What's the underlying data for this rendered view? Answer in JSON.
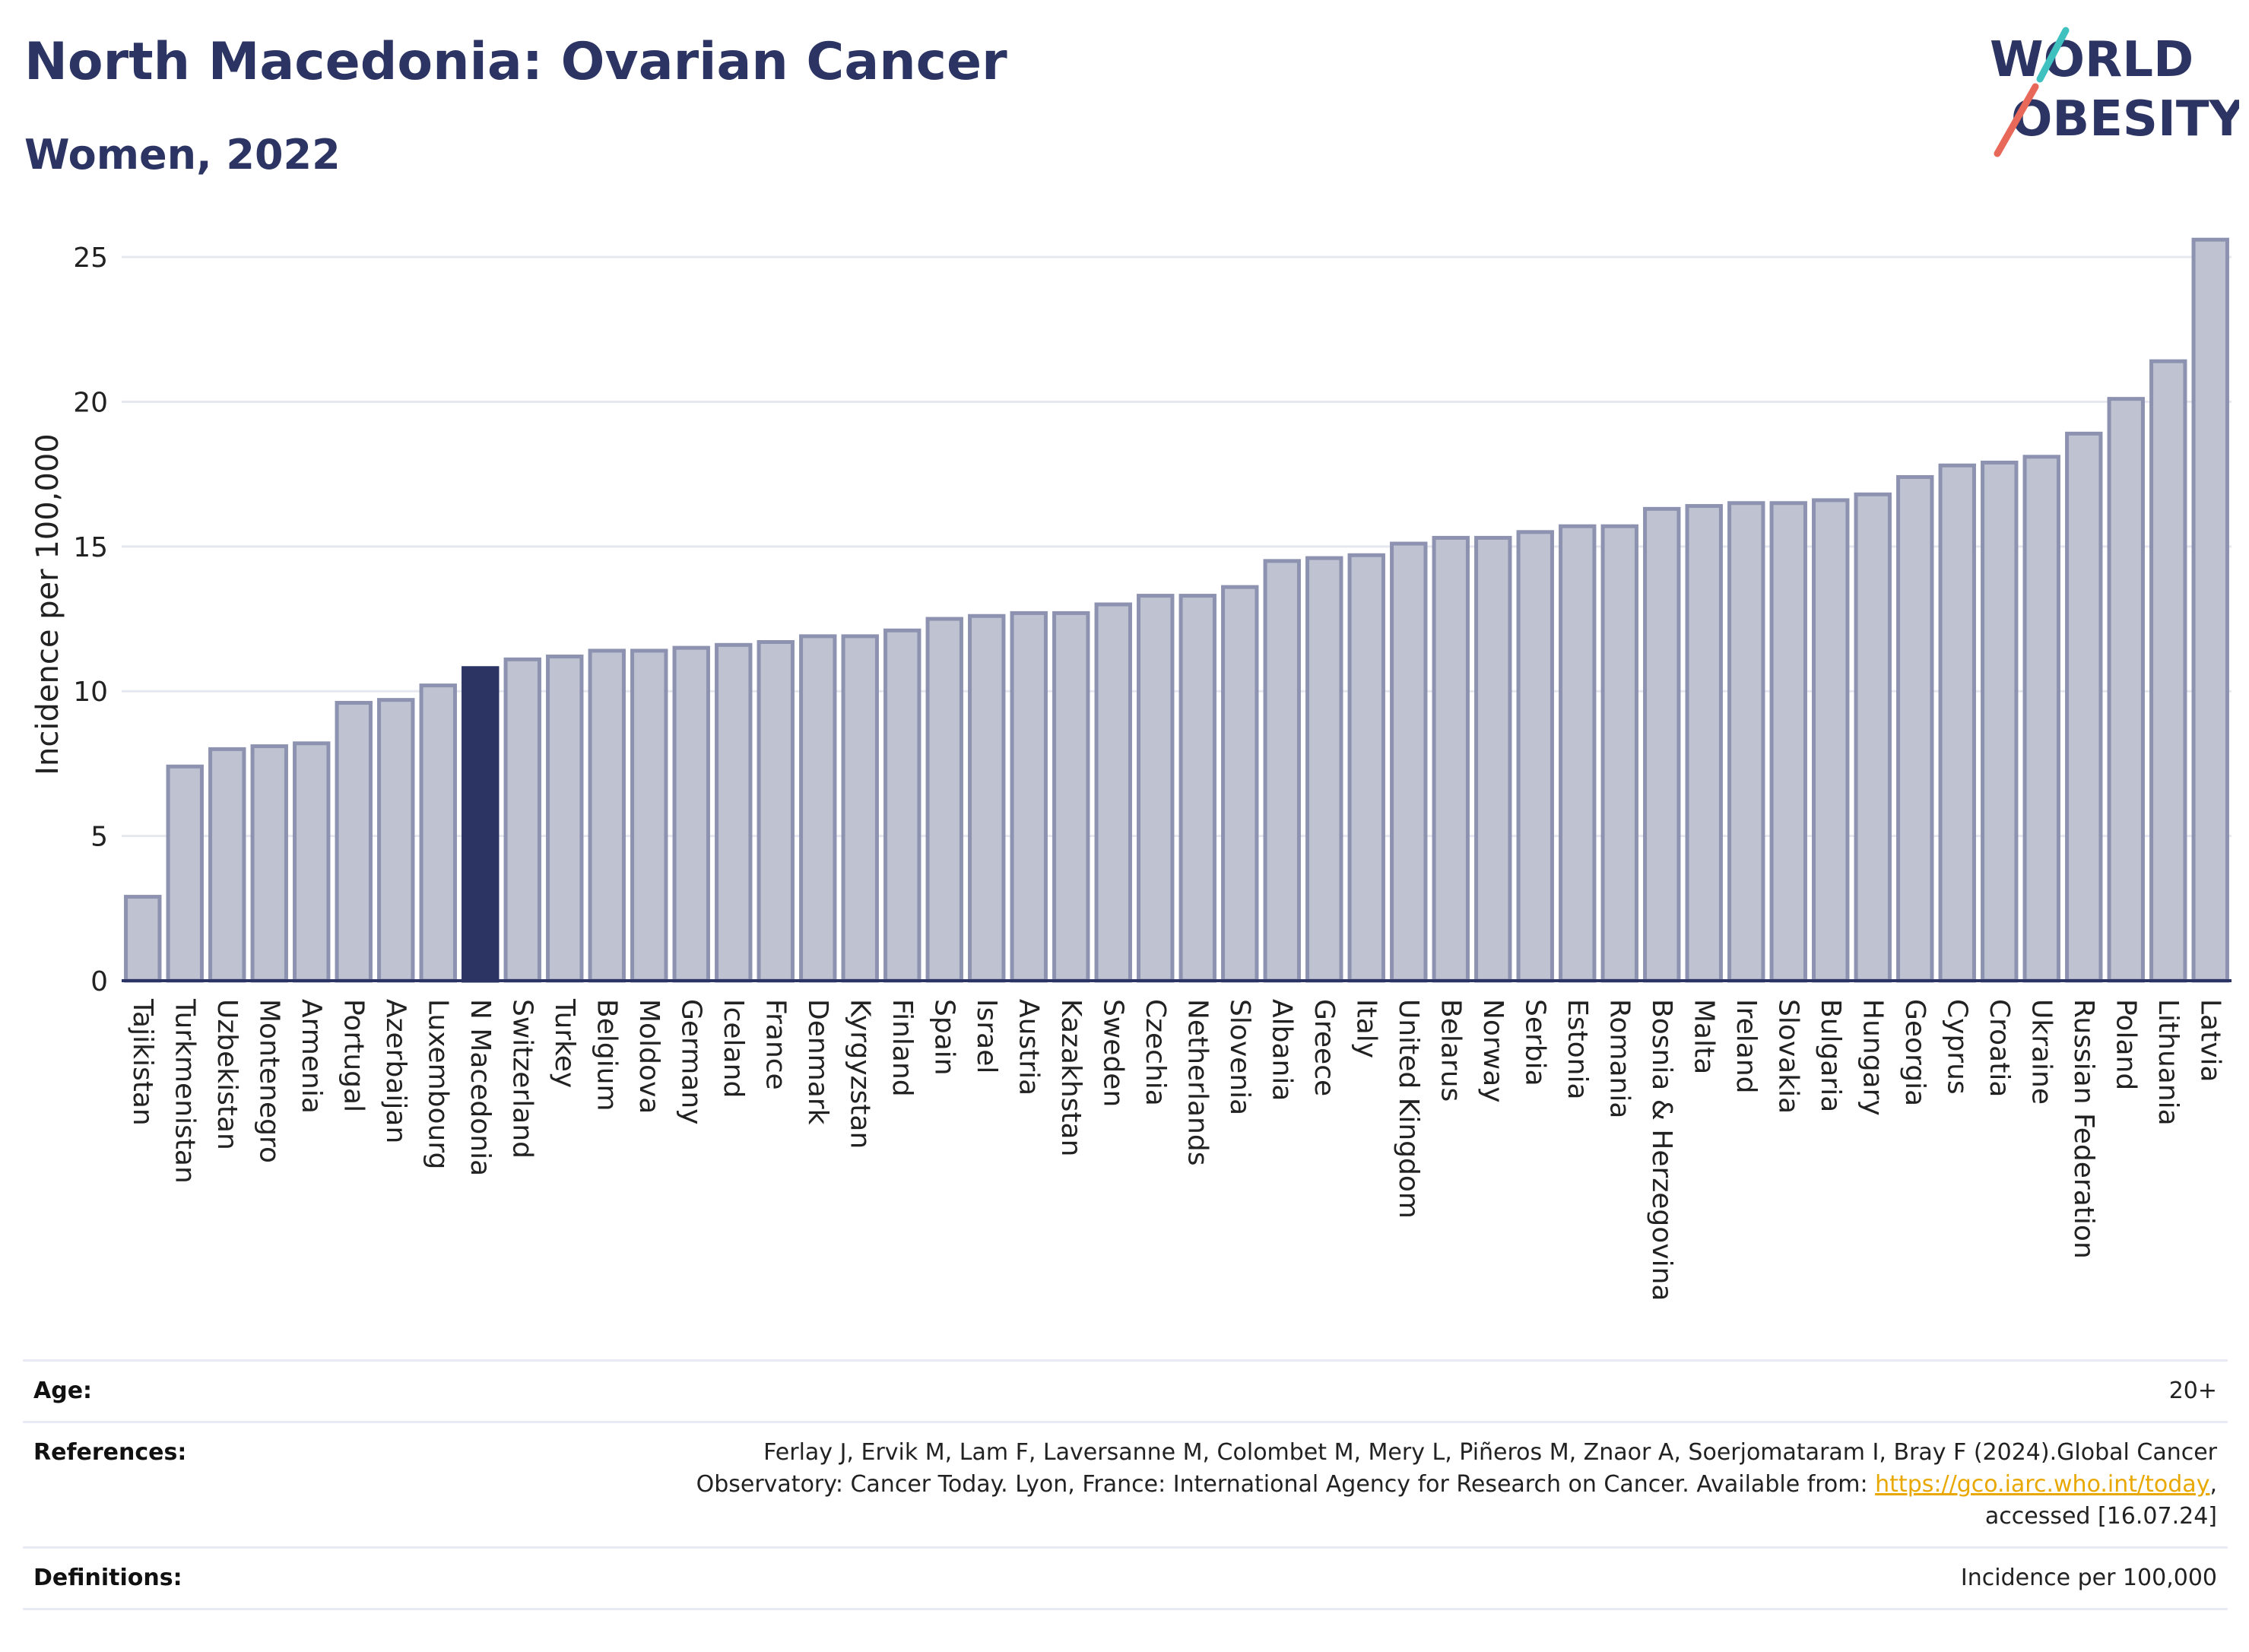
{
  "header": {
    "title": "North Macedonia: Ovarian Cancer",
    "subtitle": "Women, 2022"
  },
  "logo": {
    "line1": "WORLD",
    "line2": "OBESITY"
  },
  "colors": {
    "bar": "#bfc3d1",
    "bar_border": "#8c92b0",
    "highlight": "#2b3462",
    "grid": "#e6e8ef",
    "title": "#2b3462"
  },
  "chart_data": {
    "type": "bar",
    "title": "",
    "xlabel": "",
    "ylabel": "Incidence per 100,000",
    "ylim": [
      0,
      26
    ],
    "yticks": [
      0,
      5,
      10,
      15,
      20,
      25
    ],
    "grid": true,
    "highlight": "N Macedonia",
    "categories": [
      "Tajikistan",
      "Turkmenistan",
      "Uzbekistan",
      "Montenegro",
      "Armenia",
      "Portugal",
      "Azerbaijan",
      "Luxembourg",
      "N Macedonia",
      "Switzerland",
      "Turkey",
      "Belgium",
      "Moldova",
      "Germany",
      "Iceland",
      "France",
      "Denmark",
      "Kyrgyzstan",
      "Finland",
      "Spain",
      "Israel",
      "Austria",
      "Kazakhstan",
      "Sweden",
      "Czechia",
      "Netherlands",
      "Slovenia",
      "Albania",
      "Greece",
      "Italy",
      "United Kingdom",
      "Belarus",
      "Norway",
      "Serbia",
      "Estonia",
      "Romania",
      "Bosnia & Herzegovina",
      "Malta",
      "Ireland",
      "Slovakia",
      "Bulgaria",
      "Hungary",
      "Georgia",
      "Cyprus",
      "Croatia",
      "Ukraine",
      "Russian Federation",
      "Poland",
      "Lithuania",
      "Latvia"
    ],
    "values": [
      2.9,
      7.4,
      8.0,
      8.1,
      8.2,
      9.6,
      9.7,
      10.2,
      10.8,
      11.1,
      11.2,
      11.4,
      11.4,
      11.5,
      11.6,
      11.7,
      11.9,
      11.9,
      12.1,
      12.5,
      12.6,
      12.7,
      12.7,
      13.0,
      13.3,
      13.3,
      13.6,
      14.5,
      14.6,
      14.7,
      15.1,
      15.3,
      15.3,
      15.5,
      15.7,
      15.7,
      16.3,
      16.4,
      16.5,
      16.5,
      16.6,
      16.8,
      17.4,
      17.8,
      17.9,
      18.1,
      18.9,
      20.1,
      21.4,
      25.6
    ]
  },
  "footer": {
    "age_label": "Age:",
    "age_value": "20+",
    "references_label": "References:",
    "references_text_1": "Ferlay J, Ervik M, Lam F, Laversanne M, Colombet M, Mery L, Piñeros M, Znaor A, Soerjomataram I, Bray F (2024).Global Cancer",
    "references_text_2": "Observatory: Cancer Today. Lyon, France: International Agency for Research on Cancer. Available from: ",
    "references_link": "https://gco.iarc.who.int/today",
    "references_text_3": ",",
    "references_text_4": "accessed [16.07.24]",
    "definitions_label": "Definitions:",
    "definitions_value": "Incidence per 100,000"
  }
}
